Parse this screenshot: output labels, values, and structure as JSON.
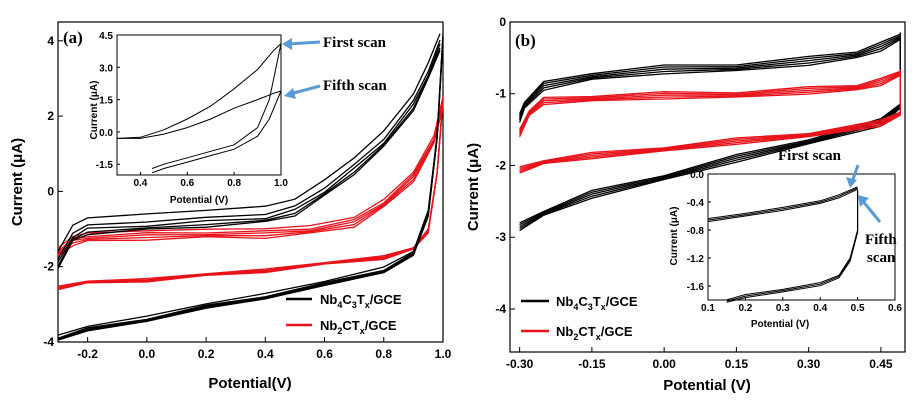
{
  "chart_data": [
    {
      "panel": "(a)",
      "type": "line",
      "xlabel": "Potential(V)",
      "ylabel": "Current (μA)",
      "xlim": [
        -0.3,
        1.0
      ],
      "ylim": [
        -4,
        4.5
      ],
      "x_ticks": [
        -0.2,
        0.0,
        0.2,
        0.4,
        0.6,
        0.8,
        1.0
      ],
      "y_ticks": [
        -4,
        -2,
        0,
        2,
        4
      ],
      "colors": {
        "Nb4C3Tx": "#000000",
        "Nb2CTx": "#e8131b"
      },
      "legend": [
        {
          "main": "Nb",
          "parts": [
            [
              "4",
              "sub"
            ],
            [
              "C",
              ""
            ],
            [
              "3",
              "sub"
            ],
            [
              "T",
              ""
            ],
            [
              "x",
              "sub"
            ],
            [
              "/GCE",
              ""
            ]
          ],
          "color": "#000000"
        },
        {
          "main": "Nb",
          "parts": [
            [
              "2",
              "sub"
            ],
            [
              "CT",
              ""
            ],
            [
              "x",
              "sub"
            ],
            [
              "/GCE",
              ""
            ]
          ],
          "color": "#e8131b"
        }
      ],
      "legend_position": "bottom-right",
      "series": [
        {
          "name": "Nb4C3Tx/GCE",
          "color": "#000000",
          "cycles": 5,
          "forward": [
            [
              -0.3,
              -1.6
            ],
            [
              -0.25,
              -0.9
            ],
            [
              -0.2,
              -0.7
            ],
            [
              0.0,
              -0.6
            ],
            [
              0.2,
              -0.5
            ],
            [
              0.4,
              -0.4
            ],
            [
              0.5,
              -0.2
            ],
            [
              0.6,
              0.3
            ],
            [
              0.7,
              0.9
            ],
            [
              0.8,
              1.6
            ],
            [
              0.9,
              2.6
            ],
            [
              0.95,
              3.4
            ],
            [
              0.99,
              4.2
            ]
          ],
          "reverse": [
            [
              1.0,
              4.2
            ],
            [
              0.98,
              1.5
            ],
            [
              0.95,
              -0.5
            ],
            [
              0.9,
              -1.6
            ],
            [
              0.8,
              -2.0
            ],
            [
              0.6,
              -2.4
            ],
            [
              0.4,
              -2.7
            ],
            [
              0.2,
              -3.0
            ],
            [
              0.0,
              -3.3
            ],
            [
              -0.2,
              -3.6
            ],
            [
              -0.3,
              -3.8
            ]
          ],
          "cycle_offsets": [
            0,
            -0.4,
            -0.6,
            -0.75,
            -0.85
          ]
        },
        {
          "name": "Nb2CTx/GCE",
          "color": "#e8131b",
          "cycles": 5,
          "forward": [
            [
              -0.3,
              -1.5
            ],
            [
              -0.25,
              -1.2
            ],
            [
              -0.2,
              -1.1
            ],
            [
              0.0,
              -1.05
            ],
            [
              0.2,
              -1.0
            ],
            [
              0.4,
              -1.0
            ],
            [
              0.55,
              -0.9
            ],
            [
              0.7,
              -0.7
            ],
            [
              0.8,
              -0.2
            ],
            [
              0.9,
              0.5
            ],
            [
              0.97,
              1.5
            ],
            [
              1.0,
              2.5
            ]
          ],
          "reverse": [
            [
              1.0,
              2.5
            ],
            [
              0.98,
              0.5
            ],
            [
              0.95,
              -1.0
            ],
            [
              0.9,
              -1.5
            ],
            [
              0.8,
              -1.7
            ],
            [
              0.6,
              -1.9
            ],
            [
              0.4,
              -2.05
            ],
            [
              0.2,
              -2.2
            ],
            [
              0.0,
              -2.3
            ],
            [
              -0.2,
              -2.4
            ],
            [
              -0.3,
              -2.5
            ]
          ],
          "cycle_offsets": [
            0,
            -0.15,
            -0.25,
            -0.35,
            -0.45
          ]
        }
      ],
      "inset": {
        "xlabel": "Potential (V)",
        "ylabel": "Current (μA)",
        "xlim": [
          0.3,
          1.0
        ],
        "ylim": [
          -2.0,
          4.5
        ],
        "x_ticks": [
          0.4,
          0.6,
          0.8,
          1.0
        ],
        "y_ticks": [
          -1.5,
          0.0,
          1.5,
          3.0,
          4.5
        ],
        "first_scan": [
          [
            0.3,
            -0.3
          ],
          [
            0.4,
            -0.25
          ],
          [
            0.5,
            0.1
          ],
          [
            0.6,
            0.6
          ],
          [
            0.7,
            1.2
          ],
          [
            0.8,
            2.0
          ],
          [
            0.9,
            2.9
          ],
          [
            0.97,
            3.8
          ],
          [
            1.0,
            4.1
          ]
        ],
        "first_scan_return": [
          [
            1.0,
            4.1
          ],
          [
            0.95,
            1.5
          ],
          [
            0.9,
            0.2
          ],
          [
            0.8,
            -0.6
          ],
          [
            0.7,
            -0.9
          ],
          [
            0.6,
            -1.2
          ],
          [
            0.5,
            -1.5
          ],
          [
            0.45,
            -1.7
          ]
        ],
        "fifth_scan": [
          [
            0.3,
            -0.3
          ],
          [
            0.4,
            -0.3
          ],
          [
            0.5,
            -0.1
          ],
          [
            0.6,
            0.2
          ],
          [
            0.7,
            0.6
          ],
          [
            0.8,
            1.1
          ],
          [
            0.9,
            1.5
          ],
          [
            0.97,
            1.8
          ],
          [
            1.0,
            1.9
          ]
        ],
        "fifth_scan_return": [
          [
            1.0,
            1.9
          ],
          [
            0.95,
            0.6
          ],
          [
            0.9,
            -0.2
          ],
          [
            0.8,
            -0.8
          ],
          [
            0.7,
            -1.1
          ],
          [
            0.6,
            -1.4
          ],
          [
            0.5,
            -1.7
          ],
          [
            0.45,
            -1.9
          ]
        ]
      },
      "annotations": {
        "first": "First scan",
        "fifth": "Fifth scan"
      }
    },
    {
      "panel": "(b)",
      "type": "line",
      "xlabel": "Potential (V)",
      "ylabel": "Current (μA)",
      "xlim": [
        -0.32,
        0.5
      ],
      "ylim": [
        -4.6,
        0
      ],
      "x_ticks": [
        -0.3,
        -0.15,
        0.0,
        0.15,
        0.3,
        0.45
      ],
      "x_tick_labels": [
        "-0.30",
        "-0.15",
        "0.00",
        "0.15",
        "0.30",
        "0.45"
      ],
      "y_ticks": [
        0,
        -1,
        -2,
        -3,
        -4
      ],
      "colors": {
        "Nb4C3Tx": "#000000",
        "Nb2CTx": "#e8131b"
      },
      "legend": [
        {
          "main": "Nb",
          "parts": [
            [
              "4",
              "sub"
            ],
            [
              "C",
              ""
            ],
            [
              "3",
              "sub"
            ],
            [
              "T",
              ""
            ],
            [
              "x",
              "sub"
            ],
            [
              "/GCE",
              ""
            ]
          ],
          "color": "#000000"
        },
        {
          "main": "Nb",
          "parts": [
            [
              "2",
              "sub"
            ],
            [
              "CT",
              ""
            ],
            [
              "x",
              "sub"
            ],
            [
              "/GCE",
              ""
            ]
          ],
          "color": "#e8131b"
        }
      ],
      "legend_position": "bottom-left",
      "series": [
        {
          "name": "Nb4C3Tx/GCE",
          "color": "#000000",
          "cycles": 5,
          "upper": [
            [
              -0.3,
              -1.4
            ],
            [
              -0.29,
              -1.2
            ],
            [
              -0.25,
              -0.95
            ],
            [
              -0.15,
              -0.8
            ],
            [
              0.0,
              -0.72
            ],
            [
              0.15,
              -0.68
            ],
            [
              0.3,
              -0.6
            ],
            [
              0.4,
              -0.5
            ],
            [
              0.45,
              -0.4
            ],
            [
              0.49,
              -0.25
            ]
          ],
          "lower": [
            [
              0.49,
              -0.25
            ],
            [
              0.49,
              -1.2
            ],
            [
              0.45,
              -1.45
            ],
            [
              0.3,
              -1.7
            ],
            [
              0.15,
              -1.95
            ],
            [
              0.0,
              -2.2
            ],
            [
              -0.15,
              -2.45
            ],
            [
              -0.25,
              -2.7
            ],
            [
              -0.3,
              -2.9
            ]
          ],
          "cycle_offsets": [
            0,
            0.05,
            0.1,
            0.15,
            0.2
          ]
        },
        {
          "name": "Nb2CTx/GCE",
          "color": "#e8131b",
          "cycles": 5,
          "upper": [
            [
              -0.3,
              -1.6
            ],
            [
              -0.28,
              -1.3
            ],
            [
              -0.25,
              -1.15
            ],
            [
              -0.15,
              -1.1
            ],
            [
              0.0,
              -1.07
            ],
            [
              0.15,
              -1.05
            ],
            [
              0.3,
              -1.0
            ],
            [
              0.4,
              -0.95
            ],
            [
              0.45,
              -0.88
            ],
            [
              0.49,
              -0.75
            ]
          ],
          "lower": [
            [
              0.49,
              -0.75
            ],
            [
              0.49,
              -1.3
            ],
            [
              0.45,
              -1.45
            ],
            [
              0.3,
              -1.6
            ],
            [
              0.15,
              -1.7
            ],
            [
              0.0,
              -1.8
            ],
            [
              -0.15,
              -1.9
            ],
            [
              -0.25,
              -1.98
            ],
            [
              -0.3,
              -2.1
            ]
          ],
          "cycle_offsets": [
            0,
            0.04,
            0.08,
            0.12,
            0.16
          ]
        }
      ],
      "inset": {
        "xlabel": "Potential (V)",
        "ylabel": "Current (μA)",
        "xlim": [
          0.1,
          0.6
        ],
        "ylim": [
          -1.8,
          0.0
        ],
        "x_ticks": [
          0.1,
          0.2,
          0.3,
          0.4,
          0.5,
          0.6
        ],
        "y_ticks": [
          0.0,
          -0.4,
          -0.8,
          -1.2,
          -1.6
        ],
        "y_tick_labels": [
          "0.0",
          "-0.4",
          "-0.8",
          "-1.2",
          "-1.6"
        ],
        "upper": [
          [
            0.1,
            -0.68
          ],
          [
            0.2,
            -0.6
          ],
          [
            0.3,
            -0.52
          ],
          [
            0.4,
            -0.42
          ],
          [
            0.45,
            -0.34
          ],
          [
            0.5,
            -0.22
          ]
        ],
        "lower": [
          [
            0.5,
            -0.22
          ],
          [
            0.5,
            -0.8
          ],
          [
            0.48,
            -1.2
          ],
          [
            0.45,
            -1.45
          ],
          [
            0.4,
            -1.55
          ],
          [
            0.3,
            -1.65
          ],
          [
            0.2,
            -1.72
          ],
          [
            0.15,
            -1.8
          ]
        ]
      },
      "annotations": {
        "first": "First scan",
        "fifth_line1": "Fifth",
        "fifth_line2": "scan"
      }
    }
  ]
}
